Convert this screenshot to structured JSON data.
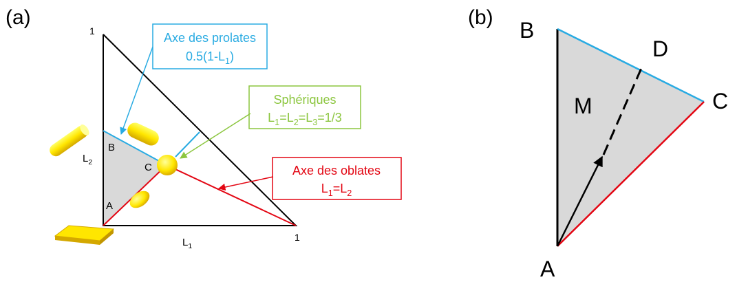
{
  "panel_a": {
    "label": "(a)",
    "y_max": "1",
    "x_max": "1",
    "y_axis": {
      "main": "L",
      "sub": "2"
    },
    "x_axis": {
      "main": "L",
      "sub": "1"
    },
    "points": {
      "A": "A",
      "B": "B",
      "C": "C"
    },
    "prolates": {
      "title": "Axe des prolates",
      "formula": [
        {
          "text": "0.5(1-L"
        },
        {
          "sub": "1"
        },
        {
          "text": ")"
        }
      ]
    },
    "spheriques": {
      "title": "Sphériques",
      "formula": [
        {
          "text": "L"
        },
        {
          "sub": "1"
        },
        {
          "text": "=L"
        },
        {
          "sub": "2"
        },
        {
          "text": "=L"
        },
        {
          "sub": "3"
        },
        {
          "text": "=1/3"
        }
      ]
    },
    "oblates": {
      "title": "Axe des oblates",
      "formula": [
        {
          "text": "L"
        },
        {
          "sub": "1"
        },
        {
          "text": "=L"
        },
        {
          "sub": "2"
        }
      ]
    }
  },
  "panel_b": {
    "label": "(b)",
    "points": {
      "A": "A",
      "B": "B",
      "C": "C",
      "D": "D",
      "M": "M"
    }
  }
}
